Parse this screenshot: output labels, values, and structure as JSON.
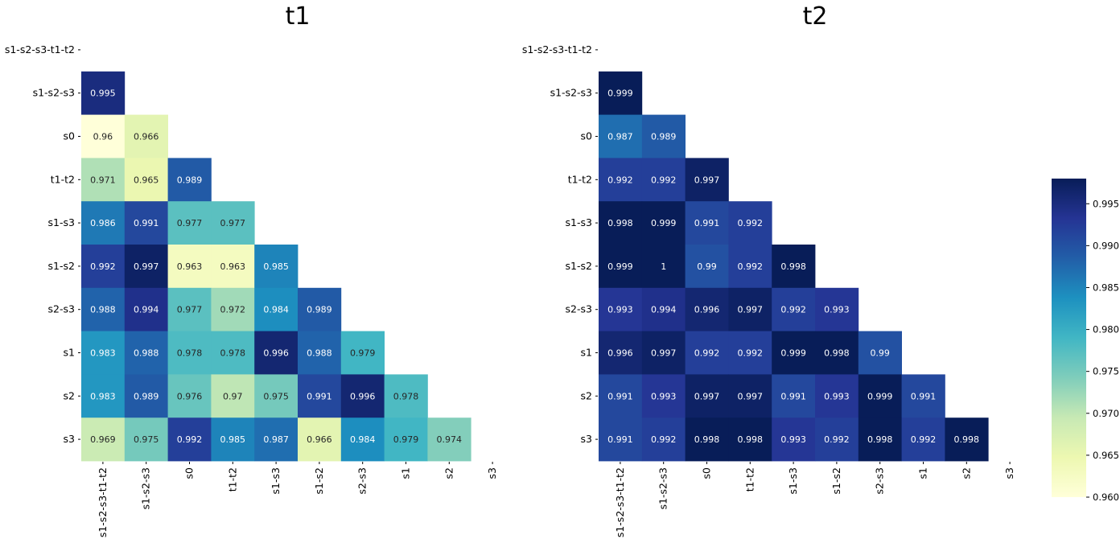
{
  "chart_data": [
    {
      "type": "heatmap",
      "title": "t1",
      "labels": [
        "s1-s2-s3-t1-t2",
        "s1-s2-s3",
        "s0",
        "t1-t2",
        "s1-s3",
        "s1-s2",
        "s2-s3",
        "s1",
        "s2",
        "s3"
      ],
      "lower_triangle": [
        [],
        [
          "0.995"
        ],
        [
          "0.96",
          "0.966"
        ],
        [
          "0.971",
          "0.965",
          "0.989"
        ],
        [
          "0.986",
          "0.991",
          "0.977",
          "0.977"
        ],
        [
          "0.992",
          "0.997",
          "0.963",
          "0.963",
          "0.985"
        ],
        [
          "0.988",
          "0.994",
          "0.977",
          "0.972",
          "0.984",
          "0.989"
        ],
        [
          "0.983",
          "0.988",
          "0.978",
          "0.978",
          "0.996",
          "0.988",
          "0.979"
        ],
        [
          "0.983",
          "0.989",
          "0.976",
          "0.97",
          "0.975",
          "0.991",
          "0.996",
          "0.978"
        ],
        [
          "0.969",
          "0.975",
          "0.992",
          "0.985",
          "0.987",
          "0.966",
          "0.984",
          "0.979",
          "0.974"
        ]
      ]
    },
    {
      "type": "heatmap",
      "title": "t2",
      "labels": [
        "s1-s2-s3-t1-t2",
        "s1-s2-s3",
        "s0",
        "t1-t2",
        "s1-s3",
        "s1-s2",
        "s2-s3",
        "s1",
        "s2",
        "s3"
      ],
      "lower_triangle": [
        [],
        [
          "0.999"
        ],
        [
          "0.987",
          "0.989"
        ],
        [
          "0.992",
          "0.992",
          "0.997"
        ],
        [
          "0.998",
          "0.999",
          "0.991",
          "0.992"
        ],
        [
          "0.999",
          "1",
          "0.99",
          "0.992",
          "0.998"
        ],
        [
          "0.993",
          "0.994",
          "0.996",
          "0.997",
          "0.992",
          "0.993"
        ],
        [
          "0.996",
          "0.997",
          "0.992",
          "0.992",
          "0.999",
          "0.998",
          "0.99"
        ],
        [
          "0.991",
          "0.993",
          "0.997",
          "0.997",
          "0.991",
          "0.993",
          "0.999",
          "0.991"
        ],
        [
          "0.991",
          "0.992",
          "0.998",
          "0.998",
          "0.993",
          "0.992",
          "0.998",
          "0.992",
          "0.998"
        ]
      ]
    }
  ],
  "colorbar": {
    "colormap": "YlGnBu",
    "range": [
      0.96,
      0.998
    ],
    "ticks": [
      "0.960",
      "0.965",
      "0.970",
      "0.975",
      "0.980",
      "0.985",
      "0.990",
      "0.995"
    ]
  }
}
